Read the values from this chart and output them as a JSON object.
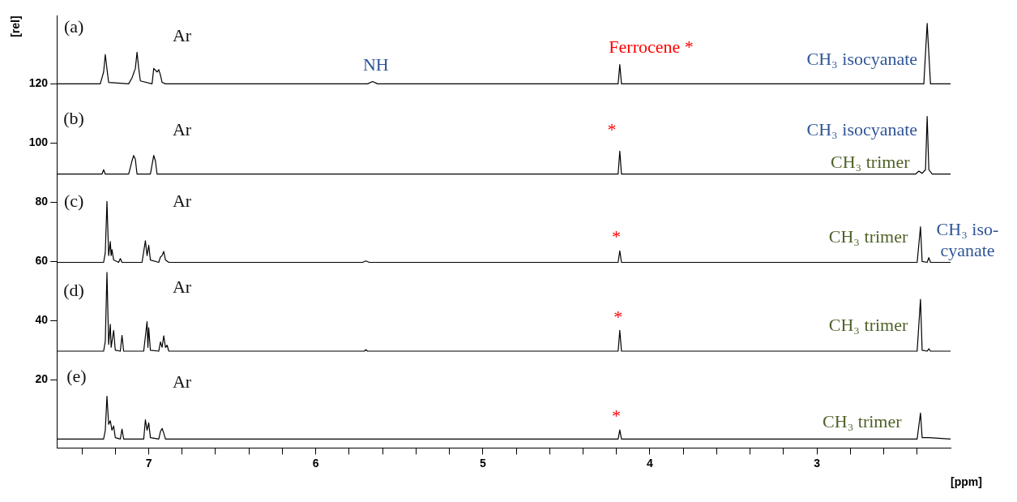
{
  "chart_data": {
    "type": "line",
    "xlabel": "[ppm]",
    "ylabel": "[rel]",
    "xlim": [
      7.55,
      2.2
    ],
    "ylim": [
      -3,
      143
    ],
    "xticks": [
      {
        "value": 7.4,
        "label": null
      },
      {
        "value": 7.2,
        "label": null
      },
      7,
      {
        "value": 6.8,
        "label": null
      },
      {
        "value": 6.6,
        "label": null
      },
      {
        "value": 6.4,
        "label": null
      },
      {
        "value": 6.2,
        "label": null
      },
      6,
      {
        "value": 5.8,
        "label": null
      },
      {
        "value": 5.6,
        "label": null
      },
      {
        "value": 5.4,
        "label": null
      },
      {
        "value": 5.2,
        "label": null
      },
      5,
      {
        "value": 4.8,
        "label": null
      },
      {
        "value": 4.6,
        "label": null
      },
      {
        "value": 4.4,
        "label": null
      },
      {
        "value": 4.2,
        "label": null
      },
      4,
      {
        "value": 3.8,
        "label": null
      },
      {
        "value": 3.6,
        "label": null
      },
      {
        "value": 3.4,
        "label": null
      },
      {
        "value": 3.2,
        "label": null
      },
      3,
      {
        "value": 2.8,
        "label": null
      },
      {
        "value": 2.6,
        "label": null
      },
      {
        "value": 2.4,
        "label": null
      }
    ],
    "yticks": [
      20,
      40,
      60,
      80,
      100,
      120
    ],
    "grid": false,
    "legend": false,
    "marker": "none",
    "line_style": "solid",
    "series": [
      {
        "color": "#000000",
        "x": [
          7.55,
          7.29,
          7.27,
          7.26,
          7.25,
          7.24,
          7.12,
          7.1,
          7.08,
          7.07,
          7.06,
          7.05,
          6.98,
          6.97,
          6.95,
          6.94,
          6.93,
          6.92,
          6.9,
          5.69,
          5.66,
          5.63,
          4.19,
          4.18,
          4.17,
          2.36,
          2.34,
          2.32,
          2.2
        ],
        "values": [
          120,
          120,
          124,
          129.9,
          125,
          120.5,
          120,
          122,
          125.2,
          130.7,
          125.2,
          121,
          120,
          125.2,
          124,
          124.8,
          123,
          120.5,
          120,
          120,
          120.8,
          120,
          120,
          126.5,
          120,
          120,
          140.4,
          120,
          120
        ]
      },
      {
        "color": "#000000",
        "x": [
          7.55,
          7.28,
          7.27,
          7.26,
          7.12,
          7.1,
          7.09,
          7.08,
          7.07,
          6.99,
          6.97,
          6.96,
          6.95,
          4.19,
          4.18,
          4.17,
          2.41,
          2.39,
          2.37,
          2.35,
          2.34,
          2.33,
          2.31,
          2.2
        ],
        "values": [
          89.5,
          89.5,
          91,
          89.5,
          89.5,
          94,
          95.8,
          94.5,
          89.5,
          89.5,
          95.8,
          94,
          89.5,
          89.5,
          97.3,
          89.5,
          89.5,
          90.5,
          89.8,
          91,
          109,
          91,
          89.5,
          89.5
        ]
      },
      {
        "color": "#000000",
        "x": [
          7.55,
          7.27,
          7.26,
          7.25,
          7.24,
          7.23,
          7.225,
          7.22,
          7.21,
          7.18,
          7.17,
          7.16,
          7.04,
          7.02,
          7.01,
          7.0,
          6.99,
          6.94,
          6.93,
          6.92,
          6.91,
          6.9,
          6.88,
          5.72,
          5.7,
          5.68,
          4.19,
          4.18,
          4.17,
          2.4,
          2.38,
          2.37,
          2.34,
          2.33,
          2.32,
          2.2
        ],
        "values": [
          59.7,
          59.7,
          63,
          80.3,
          62,
          66.7,
          62,
          64,
          60.5,
          59.7,
          61,
          59.7,
          59.7,
          67,
          62,
          65.5,
          60.5,
          59.7,
          61.5,
          62,
          63.4,
          60.5,
          59.7,
          59.7,
          60.2,
          59.7,
          59.7,
          63.6,
          59.7,
          59.7,
          71.7,
          60,
          59.7,
          61.3,
          59.7,
          59.7
        ]
      },
      {
        "color": "#000000",
        "x": [
          7.55,
          7.27,
          7.26,
          7.25,
          7.24,
          7.23,
          7.225,
          7.21,
          7.2,
          7.17,
          7.16,
          7.15,
          7.03,
          7.01,
          7.005,
          7.0,
          6.99,
          6.94,
          6.93,
          6.92,
          6.91,
          6.9,
          6.89,
          6.88,
          5.71,
          5.7,
          5.69,
          4.19,
          4.18,
          4.17,
          2.4,
          2.38,
          2.37,
          2.34,
          2.33,
          2.32,
          2.2
        ],
        "values": [
          29.7,
          29.7,
          33,
          56.3,
          32,
          38.8,
          31,
          36.7,
          30,
          29.7,
          35,
          29.7,
          29.7,
          39.7,
          31,
          37.6,
          30,
          29.7,
          32.8,
          31,
          34.9,
          31,
          31.7,
          29.7,
          29.7,
          30.2,
          29.7,
          29.7,
          36.7,
          29.7,
          29.7,
          47.2,
          30,
          29.7,
          30.5,
          29.7,
          29.7
        ]
      },
      {
        "color": "#000000",
        "x": [
          7.55,
          7.27,
          7.26,
          7.25,
          7.24,
          7.23,
          7.22,
          7.21,
          7.2,
          7.17,
          7.16,
          7.15,
          7.03,
          7.02,
          7.01,
          7.0,
          6.99,
          6.94,
          6.93,
          6.92,
          6.91,
          6.9,
          4.19,
          4.18,
          4.17,
          2.4,
          2.38,
          2.37,
          2.33,
          2.2
        ],
        "values": [
          0,
          0,
          3,
          14.5,
          5,
          6.2,
          3,
          4.4,
          0.5,
          0,
          3.4,
          0,
          0,
          6.5,
          3,
          5.5,
          0.5,
          0,
          2.5,
          3.6,
          2,
          0,
          0,
          3.1,
          0,
          0,
          8.8,
          0.5,
          0.5,
          0
        ]
      }
    ],
    "annotations": [
      "(a)",
      "Ar",
      "NH",
      "Ferrocene *",
      "CH₃ isocyanate",
      "(b)",
      "Ar",
      "*",
      "CH₃ isocyanate",
      "CH₃ trimer",
      "(c)",
      "Ar",
      "*",
      "CH₃ trimer",
      "CH₃ iso-\ncyanate",
      "(d)",
      "Ar",
      "*",
      "CH₃ trimer",
      "(e)",
      "Ar",
      "*",
      "CH₃ trimer"
    ]
  }
}
